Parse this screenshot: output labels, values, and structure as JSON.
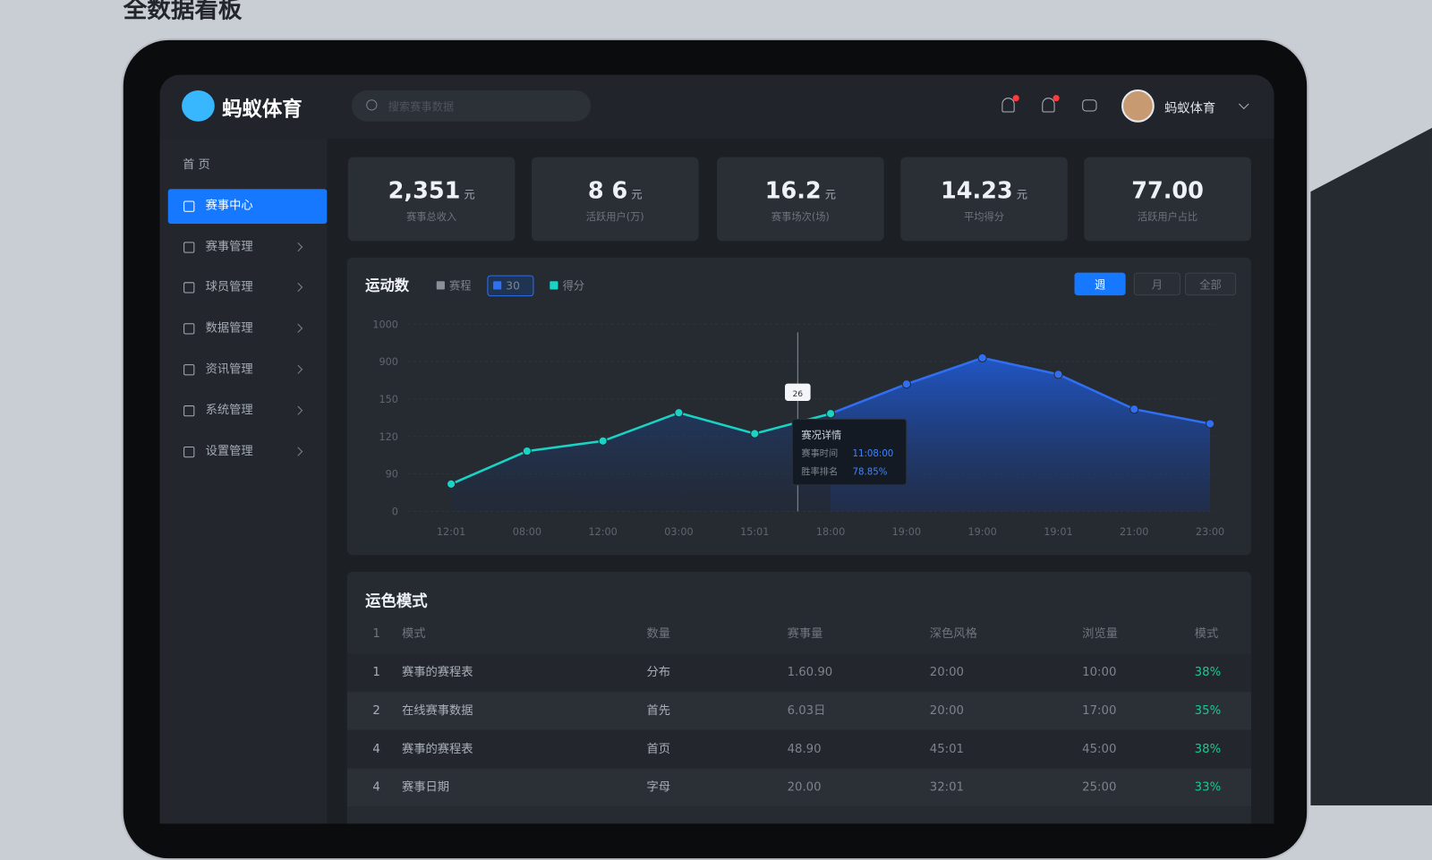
{
  "page_title": "全数据看板",
  "header": {
    "logo": "蚂蚁体育",
    "search_placeholder": "搜索赛事数据",
    "user_name": "蚂蚁体育"
  },
  "nav": [
    "首 页",
    "赛事中心",
    "赛事管理",
    "球员管理",
    "数据管理",
    "资讯管理",
    "系统管理",
    "设置管理"
  ],
  "stats": [
    {
      "value": "2,351",
      "unit": "元",
      "label": "赛事总收入"
    },
    {
      "value": "8 6",
      "unit": "元",
      "label": "活跃用户(万)"
    },
    {
      "value": "16.2",
      "unit": "元",
      "label": "赛事场次(场)"
    },
    {
      "value": "14.23",
      "unit": "元",
      "label": "平均得分"
    },
    {
      "value": "77.00",
      "label": "活跃用户占比"
    }
  ],
  "chart_data": {
    "type": "line",
    "title": "运动数",
    "buttons": [
      "週",
      "月",
      "全部"
    ],
    "categories": [
      "12:01",
      "08:00",
      "12:00",
      "03:00",
      "15:01",
      "18:00",
      "19:00",
      "19:00",
      "19:01",
      "21:00",
      "23:00"
    ],
    "series": [
      {
        "name": "赛程",
        "color": "#8a9099",
        "values": [
          null,
          null,
          null,
          null,
          null,
          null,
          null,
          null,
          null,
          null,
          null
        ]
      },
      {
        "name": "30",
        "color": "#2f6ff0",
        "values": [
          null,
          null,
          null,
          null,
          null,
          522,
          680,
          820,
          732,
          546,
          468
        ]
      },
      {
        "name": "得分",
        "color": "#19d3c5",
        "values": [
          146,
          322,
          376,
          527,
          415,
          522,
          null,
          null,
          null,
          null,
          null
        ]
      }
    ],
    "ylim": [
      0,
      1000
    ],
    "yticks": [
      0,
      {
        "value": 200,
        "label": "90"
      },
      {
        "value": 400,
        "label": "120"
      },
      {
        "value": 600,
        "label": "150"
      },
      {
        "value": 800,
        "label": "900"
      },
      1000
    ],
    "grid": true,
    "annotations": {
      "marker": "26",
      "tooltip_title": "赛况详情",
      "tooltip_rows": [
        [
          "赛事时间",
          "11:08:00"
        ],
        [
          "胜率排名",
          "78.85%"
        ]
      ]
    }
  },
  "table": {
    "title": "运色模式",
    "columns": [
      "1",
      "模式",
      "数量",
      "赛事量",
      "深色风格",
      "浏览量",
      "模式"
    ],
    "rows": [
      [
        "1",
        "赛事的赛程表",
        "分布",
        "1.60.90",
        "20:00",
        "10:00",
        "38%"
      ],
      [
        "2",
        "在线赛事数据",
        "首先",
        "6.03日",
        "20:00",
        "17:00",
        "35%"
      ],
      [
        "4",
        "赛事的赛程表",
        "首页",
        "48.90",
        "45:01",
        "45:00",
        "38%"
      ],
      [
        "4",
        "赛事日期",
        "字母",
        "20.00",
        "32:01",
        "25:00",
        "33%"
      ]
    ]
  }
}
